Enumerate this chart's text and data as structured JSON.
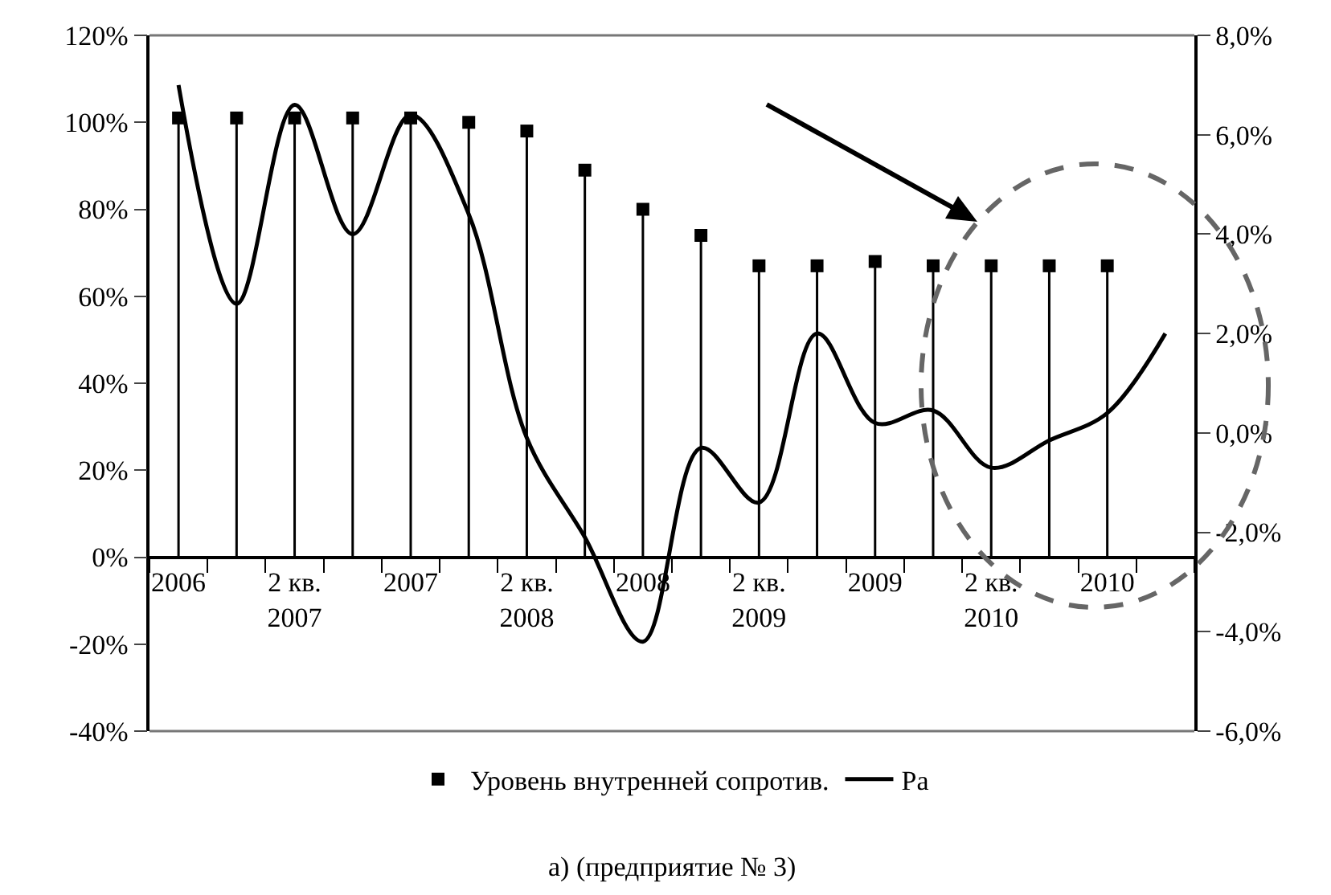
{
  "chart_data": {
    "type": "line",
    "categories": [
      "2006",
      null,
      "2 кв.\n2007",
      null,
      "2007",
      null,
      "2 кв.\n2008",
      null,
      "2008",
      null,
      "2 кв.\n2009",
      null,
      "2009",
      null,
      "2 кв.\n2010",
      null,
      "2010",
      null
    ],
    "series": [
      {
        "name": "Уровень внутренней сопротив.",
        "type": "lollipop",
        "marker": "square",
        "color": "#000000",
        "values": [
          101,
          101,
          101,
          101,
          101,
          100,
          98,
          89,
          80,
          74,
          67,
          67,
          68,
          67,
          67,
          67,
          67,
          null
        ]
      },
      {
        "name": "Ра",
        "axis": "y2",
        "line_style": "solid",
        "color": "#000000",
        "values": [
          7.0,
          2.6,
          6.6,
          4.0,
          6.4,
          4.4,
          -0.1,
          -2.1,
          -4.2,
          -0.3,
          -1.4,
          2.0,
          0.2,
          0.45,
          -0.7,
          -0.15,
          0.4,
          2.0
        ]
      }
    ],
    "ylim": [
      -40,
      120
    ],
    "yticks": [
      {
        "value": -40,
        "label": "-40%"
      },
      {
        "value": -20,
        "label": "-20%"
      },
      {
        "value": 0,
        "label": "0%"
      },
      {
        "value": 20,
        "label": "20%"
      },
      {
        "value": 40,
        "label": "40%"
      },
      {
        "value": 60,
        "label": "60%"
      },
      {
        "value": 80,
        "label": "80%"
      },
      {
        "value": 100,
        "label": "100%"
      },
      {
        "value": 120,
        "label": "120%"
      }
    ],
    "y2lim": [
      -6,
      8
    ],
    "y2ticks": [
      {
        "value": -6,
        "label": "-6,0%"
      },
      {
        "value": -4,
        "label": "-4,0%"
      },
      {
        "value": -2,
        "label": "-2,0%"
      },
      {
        "value": 0,
        "label": "0,0%"
      },
      {
        "value": 2,
        "label": "2,0%"
      },
      {
        "value": 4,
        "label": "4,0%"
      },
      {
        "value": 6,
        "label": "6,0%"
      },
      {
        "value": 8,
        "label": "8,0%"
      }
    ],
    "legend": "bottom",
    "annotations": [
      "а) (предприятие № 3)"
    ]
  }
}
